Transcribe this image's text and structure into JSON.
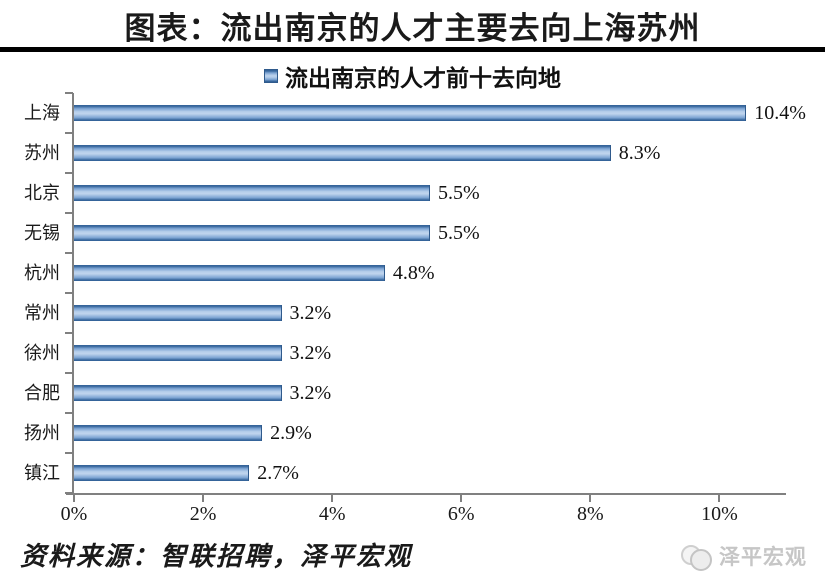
{
  "page": {
    "title": "图表：流出南京的人才主要去向上海苏州"
  },
  "chart_data": {
    "type": "bar",
    "orientation": "horizontal",
    "title": "流出南京的人才前十去向地",
    "legend_position": "top",
    "categories": [
      "上海",
      "苏州",
      "北京",
      "无锡",
      "杭州",
      "常州",
      "徐州",
      "合肥",
      "扬州",
      "镇江"
    ],
    "values": [
      10.4,
      8.3,
      5.5,
      5.5,
      4.8,
      3.2,
      3.2,
      3.2,
      2.9,
      2.7
    ],
    "value_labels": [
      "10.4%",
      "8.3%",
      "5.5%",
      "5.5%",
      "4.8%",
      "3.2%",
      "3.2%",
      "3.2%",
      "2.9%",
      "2.7%"
    ],
    "x_tick_labels": [
      "0%",
      "2%",
      "4%",
      "6%",
      "8%",
      "10%"
    ],
    "x_tick_values": [
      0,
      2,
      4,
      6,
      8,
      10
    ],
    "xlim": [
      0,
      11
    ],
    "grid": false,
    "bar_color_dark": "#35649a",
    "bar_color_light": "#b7cfeb",
    "axis_color": "#808080"
  },
  "footer": {
    "source": "资料来源：智联招聘，泽平宏观",
    "logo_text": "泽平宏观"
  }
}
